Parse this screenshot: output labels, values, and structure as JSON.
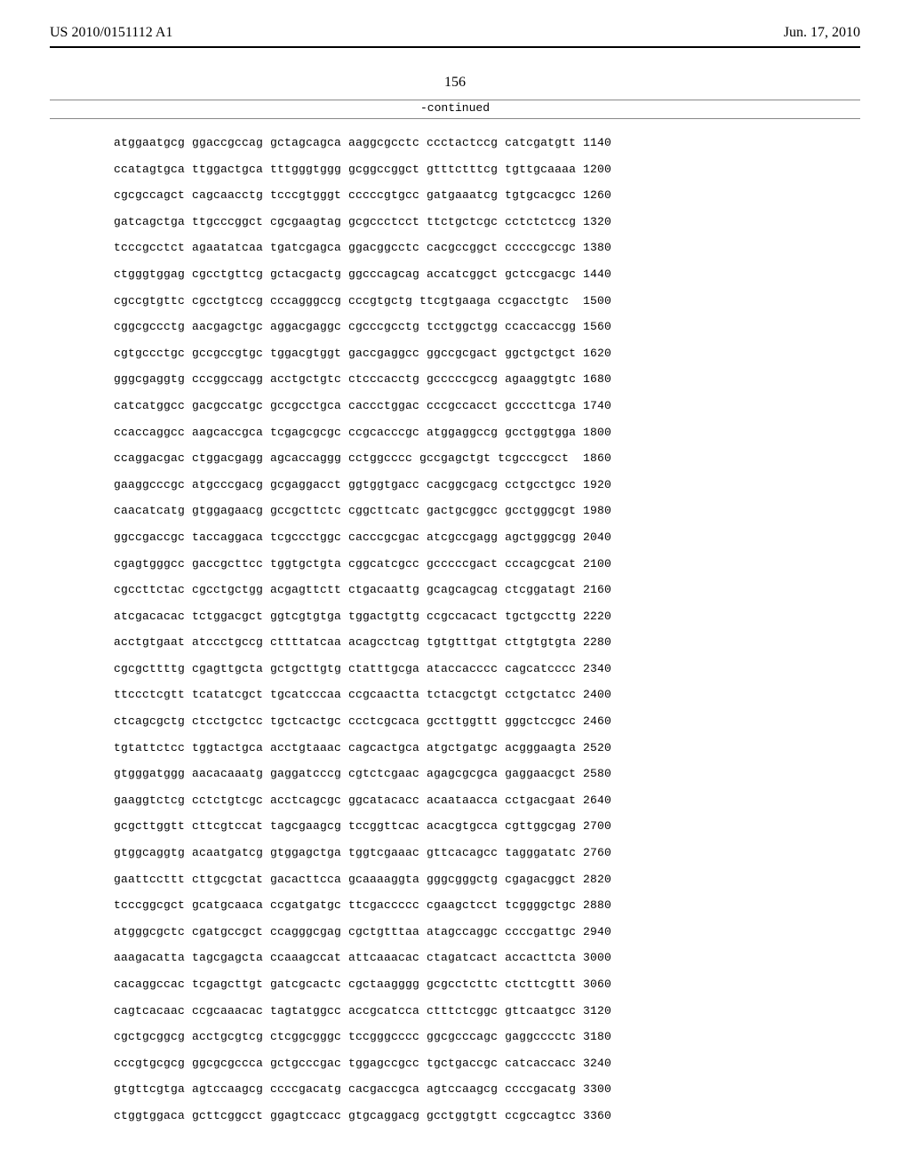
{
  "header": {
    "pub_number": "US 2010/0151112 A1",
    "pub_date": "Jun. 17, 2010"
  },
  "page_number": "156",
  "continued_label": "-continued",
  "sequence_rows": [
    {
      "groups": "atggaatgcg ggaccgccag gctagcagca aaggcgcctc ccctactccg catcgatgtt",
      "pos": "1140"
    },
    {
      "groups": "ccatagtgca ttggactgca tttgggtggg gcggccggct gtttctttcg tgttgcaaaa",
      "pos": "1200"
    },
    {
      "groups": "cgcgccagct cagcaacctg tcccgtgggt cccccgtgcc gatgaaatcg tgtgcacgcc",
      "pos": "1260"
    },
    {
      "groups": "gatcagctga ttgcccggct cgcgaagtag gcgccctcct ttctgctcgc cctctctccg",
      "pos": "1320"
    },
    {
      "groups": "tcccgcctct agaatatcaa tgatcgagca ggacggcctc cacgccggct cccccgccgc",
      "pos": "1380"
    },
    {
      "groups": "ctgggtggag cgcctgttcg gctacgactg ggcccagcag accatcggct gctccgacgc",
      "pos": "1440"
    },
    {
      "groups": "cgccgtgttc cgcctgtccg cccagggccg cccgtgctg ttcgtgaaga ccgacctgtc",
      "pos": "1500"
    },
    {
      "groups": "cggcgccctg aacgagctgc aggacgaggc cgcccgcctg tcctggctgg ccaccaccgg",
      "pos": "1560"
    },
    {
      "groups": "cgtgccctgc gccgccgtgc tggacgtggt gaccgaggcc ggccgcgact ggctgctgct",
      "pos": "1620"
    },
    {
      "groups": "gggcgaggtg cccggccagg acctgctgtc ctcccacctg gcccccgccg agaaggtgtc",
      "pos": "1680"
    },
    {
      "groups": "catcatggcc gacgccatgc gccgcctgca caccctggac cccgccacct gccccttcga",
      "pos": "1740"
    },
    {
      "groups": "ccaccaggcc aagcaccgca tcgagcgcgc ccgcacccgc atggaggccg gcctggtgga",
      "pos": "1800"
    },
    {
      "groups": "ccaggacgac ctggacgagg agcaccaggg cctggcccc gccgagctgt tcgcccgcct",
      "pos": "1860"
    },
    {
      "groups": "gaaggcccgc atgcccgacg gcgaggacct ggtggtgacc cacggcgacg cctgcctgcc",
      "pos": "1920"
    },
    {
      "groups": "caacatcatg gtggagaacg gccgcttctc cggcttcatc gactgcggcc gcctgggcgt",
      "pos": "1980"
    },
    {
      "groups": "ggccgaccgc taccaggaca tcgccctggc cacccgcgac atcgccgagg agctgggcgg",
      "pos": "2040"
    },
    {
      "groups": "cgagtgggcc gaccgcttcc tggtgctgta cggcatcgcc gcccccgact cccagcgcat",
      "pos": "2100"
    },
    {
      "groups": "cgccttctac cgcctgctgg acgagttctt ctgacaattg gcagcagcag ctcggatagt",
      "pos": "2160"
    },
    {
      "groups": "atcgacacac tctggacgct ggtcgtgtga tggactgttg ccgccacact tgctgccttg",
      "pos": "2220"
    },
    {
      "groups": "acctgtgaat atccctgccg cttttatcaa acagcctcag tgtgtttgat cttgtgtgta",
      "pos": "2280"
    },
    {
      "groups": "cgcgcttttg cgagttgcta gctgcttgtg ctatttgcga ataccacccc cagcatcccc",
      "pos": "2340"
    },
    {
      "groups": "ttccctcgtt tcatatcgct tgcatcccaa ccgcaactta tctacgctgt cctgctatcc",
      "pos": "2400"
    },
    {
      "groups": "ctcagcgctg ctcctgctcc tgctcactgc ccctcgcaca gccttggttt gggctccgcc",
      "pos": "2460"
    },
    {
      "groups": "tgtattctcc tggtactgca acctgtaaac cagcactgca atgctgatgc acgggaagta",
      "pos": "2520"
    },
    {
      "groups": "gtgggatggg aacacaaatg gaggatcccg cgtctcgaac agagcgcgca gaggaacgct",
      "pos": "2580"
    },
    {
      "groups": "gaaggtctcg cctctgtcgc acctcagcgc ggcatacacc acaataacca cctgacgaat",
      "pos": "2640"
    },
    {
      "groups": "gcgcttggtt cttcgtccat tagcgaagcg tccggttcac acacgtgcca cgttggcgag",
      "pos": "2700"
    },
    {
      "groups": "gtggcaggtg acaatgatcg gtggagctga tggtcgaaac gttcacagcc tagggatatc",
      "pos": "2760"
    },
    {
      "groups": "gaattccttt cttgcgctat gacacttcca gcaaaaggta gggcgggctg cgagacggct",
      "pos": "2820"
    },
    {
      "groups": "tcccggcgct gcatgcaaca ccgatgatgc ttcgaccccc cgaagctcct tcggggctgc",
      "pos": "2880"
    },
    {
      "groups": "atgggcgctc cgatgccgct ccagggcgag cgctgtttaa atagccaggc ccccgattgc",
      "pos": "2940"
    },
    {
      "groups": "aaagacatta tagcgagcta ccaaagccat attcaaacac ctagatcact accacttcta",
      "pos": "3000"
    },
    {
      "groups": "cacaggccac tcgagcttgt gatcgcactc cgctaagggg gcgcctcttc ctcttcgttt",
      "pos": "3060"
    },
    {
      "groups": "cagtcacaac ccgcaaacac tagtatggcc accgcatcca ctttctcggc gttcaatgcc",
      "pos": "3120"
    },
    {
      "groups": "cgctgcggcg acctgcgtcg ctcggcgggc tccgggcccc ggcgcccagc gaggcccctc",
      "pos": "3180"
    },
    {
      "groups": "cccgtgcgcg ggcgcgccca gctgcccgac tggagccgcc tgctgaccgc catcaccacc",
      "pos": "3240"
    },
    {
      "groups": "gtgttcgtga agtccaagcg ccccgacatg cacgaccgca agtccaagcg ccccgacatg",
      "pos": "3300"
    },
    {
      "groups": "ctggtggaca gcttcggcct ggagtccacc gtgcaggacg gcctggtgtt ccgccagtcc",
      "pos": "3360"
    }
  ]
}
